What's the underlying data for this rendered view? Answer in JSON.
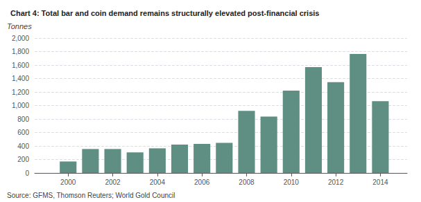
{
  "chart_data": {
    "type": "bar",
    "title": "Chart 4: Total bar and coin demand remains structurally elevated post-financial crisis",
    "ylabel": "Tonnes",
    "source": "Source: GFMS, Thomson Reuters; World Gold Council",
    "x": [
      2000,
      2001,
      2002,
      2003,
      2004,
      2005,
      2006,
      2007,
      2008,
      2009,
      2010,
      2011,
      2012,
      2013,
      2014
    ],
    "values": [
      170,
      355,
      355,
      305,
      365,
      420,
      430,
      445,
      920,
      835,
      1220,
      1570,
      1345,
      1765,
      1065
    ],
    "color": "#5f8f82",
    "xlim": [
      1998.5,
      2015.2
    ],
    "xticks": [
      2000,
      2002,
      2004,
      2006,
      2008,
      2010,
      2012,
      2014
    ],
    "ylim": [
      0,
      2000
    ],
    "yticks": [
      0,
      200,
      400,
      600,
      800,
      {
        "value": 1000,
        "label": "1,000"
      },
      {
        "value": 1200,
        "label": "1,200"
      },
      {
        "value": 1400,
        "label": "1,400"
      },
      {
        "value": 1600,
        "label": "1,600"
      },
      {
        "value": 1800,
        "label": "1,800"
      },
      {
        "value": 2000,
        "label": "2,000"
      }
    ],
    "grid": true
  }
}
